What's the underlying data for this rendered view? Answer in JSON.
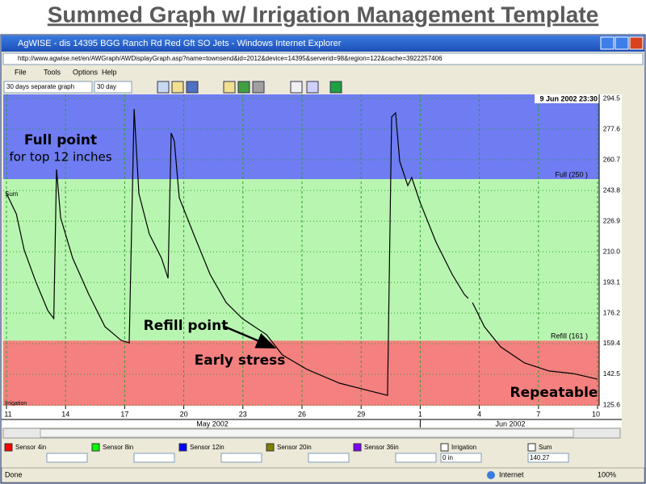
{
  "slide_title": "Summed Graph w/ Irrigation Management Template",
  "window": {
    "title": "AgWISE - dis 14395 BGG Ranch Rd Red Gft SO Jets - Windows Internet Explorer",
    "url": "http://www.agwise.net/en/AWGraph/AWDisplayGraph.asp?name=townsend&id=2012&device=14395&serverid=98&region=122&cache=3922257406"
  },
  "menu": [
    "File",
    "Tools",
    "Options",
    "Help"
  ],
  "toolbar": {
    "graph_mode": "30 days separate graph",
    "period": "30 day"
  },
  "chart_data": {
    "type": "line",
    "timestamp": "9 Jun 2002 23:30",
    "x": [
      0,
      0.5,
      0.9,
      1.5,
      2.1,
      2.4,
      2.54,
      2.75,
      3.36,
      4.18,
      5.0,
      5.82,
      6.23,
      6.48,
      6.72,
      7.25,
      7.87,
      8.2,
      8.36,
      8.52,
      8.77,
      9.5,
      10.33,
      11.15,
      11.97,
      13.2,
      14.0,
      15.25,
      16.9,
      18.5,
      19.34,
      19.55,
      19.75,
      19.96,
      20.37,
      20.57,
      20.98,
      21.8,
      22.62,
      23.24,
      23.44,
      23.55,
      23.65,
      24.26,
      25.08,
      26.3,
      27.54,
      28.77,
      30
    ],
    "series": [
      {
        "name": "Sum",
        "color": "#000000",
        "values": [
          242.1,
          230.9,
          210.9,
          193.2,
          177.6,
          173.2,
          255.4,
          228.7,
          206.5,
          186.5,
          168.7,
          161.2,
          159.8,
          288.7,
          242.1,
          219.8,
          206.5,
          195.4,
          275.4,
          270.9,
          239.8,
          219.8,
          197.6,
          182.0,
          173.2,
          164.3,
          153.2,
          145.2,
          137.6,
          133.2,
          130.9,
          284.3,
          286.5,
          259.8,
          246.5,
          250.9,
          237.6,
          215.4,
          197.6,
          186.5,
          184.3,
          null,
          182.0,
          168.7,
          157.6,
          148.7,
          144.3,
          142.9,
          139.8
        ]
      }
    ],
    "xlim": [
      0,
      30
    ],
    "xticks": [
      {
        "value": 0,
        "label": "11"
      },
      {
        "value": 3,
        "label": "14"
      },
      {
        "value": 6,
        "label": "17"
      },
      {
        "value": 9,
        "label": "20"
      },
      {
        "value": 12,
        "label": "23"
      },
      {
        "value": 15,
        "label": "26"
      },
      {
        "value": 18,
        "label": "29"
      },
      {
        "value": 21,
        "label": "1"
      },
      {
        "value": 24,
        "label": "4"
      },
      {
        "value": 27,
        "label": "7"
      },
      {
        "value": 30,
        "label": "10"
      }
    ],
    "months": [
      "May 2002",
      "Jun 2002"
    ],
    "ylim": [
      125.6,
      294.5
    ],
    "yticks": [
      125.6,
      142.5,
      159.4,
      176.2,
      193.1,
      {
        "value": 210,
        "label": "210.0"
      },
      226.9,
      243.8,
      260.7,
      277.6,
      294.5
    ],
    "zones": [
      {
        "value": 250,
        "label": "Full (250 )"
      },
      {
        "value": 161,
        "label": "Refill (161 )"
      }
    ],
    "zone_colors": [
      "#6f7cf2",
      "#b8f5b0",
      "#f58080"
    ],
    "grid": true,
    "irrigation_label": "Irrigation",
    "annotations": [
      "Full point",
      "for top 12 inches",
      "Refill point",
      "Early stress",
      "Repeatable"
    ]
  },
  "legend": [
    {
      "name": "Sensor 4in",
      "color": "#ff0000"
    },
    {
      "name": "Sensor 8in",
      "color": "#00ff00"
    },
    {
      "name": "Sensor 12in",
      "color": "#0000ff"
    },
    {
      "name": "Sensor 20in",
      "color": "#808000"
    },
    {
      "name": "Sensor 36in",
      "color": "#8000ff"
    },
    {
      "name": "Irrigation",
      "value": "0 in"
    },
    {
      "name": "Sum",
      "value": 140.27
    }
  ],
  "status": {
    "left": "Done",
    "zone": "Internet",
    "zoom": "100%"
  }
}
